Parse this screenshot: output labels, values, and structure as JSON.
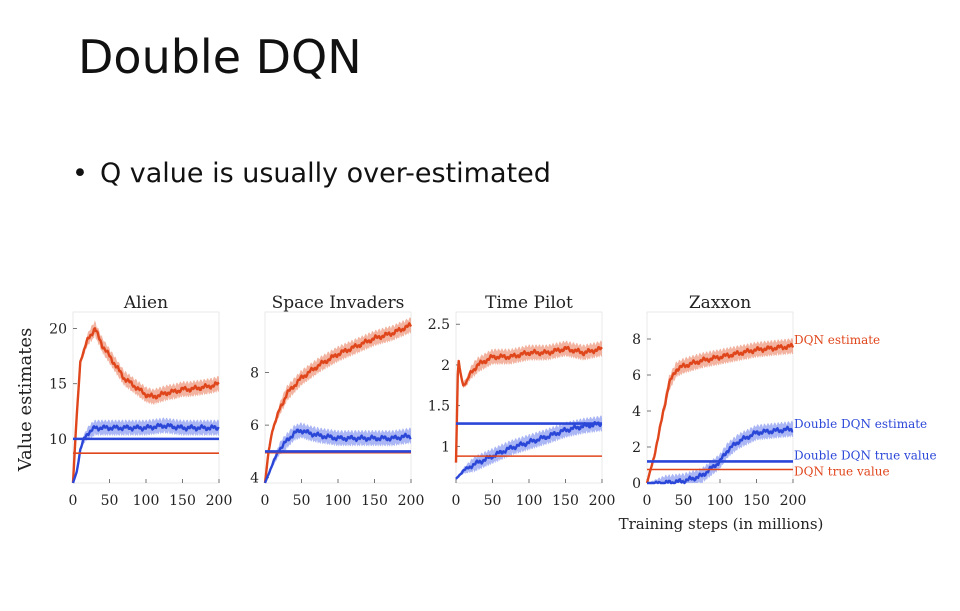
{
  "slide": {
    "title": "Double DQN",
    "bullet": "Q value is usually over-estimated",
    "bullet_symbol": "•"
  },
  "colors": {
    "dqn": "#e0461c",
    "dqn_band": "#ee9a80",
    "ddqn": "#2b47d8",
    "ddqn_band": "#8f9df0"
  },
  "chart_data": [
    {
      "type": "line",
      "title": "Alien",
      "ylabel": "Value estimates",
      "xlabel": "",
      "xlim": [
        0,
        200
      ],
      "ylim": [
        6,
        21.5
      ],
      "xticks": [
        0,
        50,
        100,
        150,
        200
      ],
      "yticks": [
        10,
        15,
        20
      ],
      "series": [
        {
          "role": "dqn_estimate",
          "x": [
            0,
            5,
            10,
            20,
            30,
            40,
            50,
            60,
            70,
            80,
            90,
            100,
            110,
            120,
            130,
            140,
            150,
            160,
            170,
            180,
            190,
            200
          ],
          "y": [
            6,
            12,
            17,
            19,
            20,
            18.5,
            17.5,
            16.5,
            15.5,
            15,
            14.5,
            14,
            13.8,
            14,
            14.2,
            14.3,
            14.5,
            14.5,
            14.6,
            14.7,
            14.8,
            15
          ]
        },
        {
          "role": "ddqn_estimate",
          "x": [
            0,
            5,
            10,
            15,
            20,
            30,
            50,
            75,
            100,
            125,
            150,
            175,
            200
          ],
          "y": [
            6,
            7,
            9,
            10,
            10.5,
            11,
            11,
            11,
            11,
            11.2,
            11,
            11,
            11
          ]
        },
        {
          "role": "dqn_true",
          "x": [
            0,
            200
          ],
          "y": [
            8.7,
            8.7
          ]
        },
        {
          "role": "ddqn_true",
          "x": [
            0,
            200
          ],
          "y": [
            10,
            10
          ]
        }
      ]
    },
    {
      "type": "line",
      "title": "Space Invaders",
      "xlabel": "",
      "ylabel": "",
      "xlim": [
        0,
        200
      ],
      "ylim": [
        3.8,
        10.3
      ],
      "xticks": [
        0,
        50,
        100,
        150,
        200
      ],
      "yticks": [
        4,
        6,
        8
      ],
      "series": [
        {
          "role": "dqn_estimate",
          "x": [
            0,
            5,
            10,
            20,
            30,
            50,
            75,
            100,
            125,
            150,
            175,
            200
          ],
          "y": [
            3.8,
            5,
            5.8,
            6.6,
            7.2,
            7.8,
            8.3,
            8.7,
            9,
            9.3,
            9.5,
            9.8
          ]
        },
        {
          "role": "ddqn_estimate",
          "x": [
            0,
            10,
            20,
            30,
            40,
            50,
            60,
            75,
            100,
            125,
            150,
            175,
            200
          ],
          "y": [
            3.8,
            4.5,
            5.1,
            5.4,
            5.7,
            5.8,
            5.7,
            5.6,
            5.5,
            5.5,
            5.5,
            5.5,
            5.6
          ]
        },
        {
          "role": "dqn_true",
          "x": [
            0,
            200
          ],
          "y": [
            4.95,
            4.95
          ]
        },
        {
          "role": "ddqn_true",
          "x": [
            0,
            200
          ],
          "y": [
            5,
            5
          ]
        }
      ]
    },
    {
      "type": "line",
      "title": "Time Pilot",
      "xlabel": "",
      "ylabel": "",
      "xlim": [
        0,
        200
      ],
      "ylim": [
        0.55,
        2.65
      ],
      "xticks": [
        0,
        50,
        100,
        150,
        200
      ],
      "yticks": [
        1.0,
        1.5,
        2.0,
        2.5
      ],
      "series": [
        {
          "role": "dqn_estimate",
          "x": [
            0,
            3,
            6,
            10,
            15,
            20,
            30,
            50,
            75,
            100,
            125,
            150,
            175,
            200
          ],
          "y": [
            0.8,
            2.1,
            1.9,
            1.75,
            1.8,
            1.9,
            2.0,
            2.1,
            2.1,
            2.15,
            2.15,
            2.2,
            2.15,
            2.2
          ]
        },
        {
          "role": "ddqn_estimate",
          "x": [
            0,
            10,
            25,
            50,
            75,
            100,
            125,
            150,
            175,
            200
          ],
          "y": [
            0.6,
            0.7,
            0.78,
            0.88,
            0.98,
            1.05,
            1.12,
            1.2,
            1.25,
            1.28
          ]
        },
        {
          "role": "dqn_true",
          "x": [
            0,
            200
          ],
          "y": [
            0.88,
            0.88
          ]
        },
        {
          "role": "ddqn_true",
          "x": [
            0,
            200
          ],
          "y": [
            1.28,
            1.28
          ]
        }
      ]
    },
    {
      "type": "line",
      "title": "Zaxxon",
      "xlabel": "Training steps (in millions)",
      "ylabel": "",
      "xlim": [
        0,
        200
      ],
      "ylim": [
        0,
        9.5
      ],
      "xticks": [
        0,
        50,
        100,
        150,
        200
      ],
      "yticks": [
        0,
        2,
        4,
        6,
        8
      ],
      "legend": [
        "DQN estimate",
        "Double DQN estimate",
        "Double DQN true value",
        "DQN true value"
      ],
      "legend_placement": "right",
      "series": [
        {
          "role": "dqn_estimate",
          "name": "DQN estimate",
          "x": [
            0,
            10,
            20,
            30,
            40,
            50,
            75,
            100,
            125,
            150,
            175,
            200
          ],
          "y": [
            0,
            1.5,
            3.5,
            5.5,
            6.3,
            6.5,
            6.8,
            7.0,
            7.2,
            7.4,
            7.5,
            7.6
          ]
        },
        {
          "role": "ddqn_estimate",
          "name": "Double DQN estimate",
          "x": [
            0,
            25,
            50,
            75,
            100,
            110,
            125,
            150,
            175,
            200
          ],
          "y": [
            0,
            0,
            0.1,
            0.4,
            1.2,
            1.8,
            2.3,
            2.8,
            2.9,
            3.0
          ]
        },
        {
          "role": "ddqn_true",
          "name": "Double DQN true value",
          "x": [
            0,
            200
          ],
          "y": [
            1.2,
            1.2
          ]
        },
        {
          "role": "dqn_true",
          "name": "DQN true value",
          "x": [
            0,
            200
          ],
          "y": [
            0.75,
            0.75
          ]
        }
      ]
    }
  ]
}
